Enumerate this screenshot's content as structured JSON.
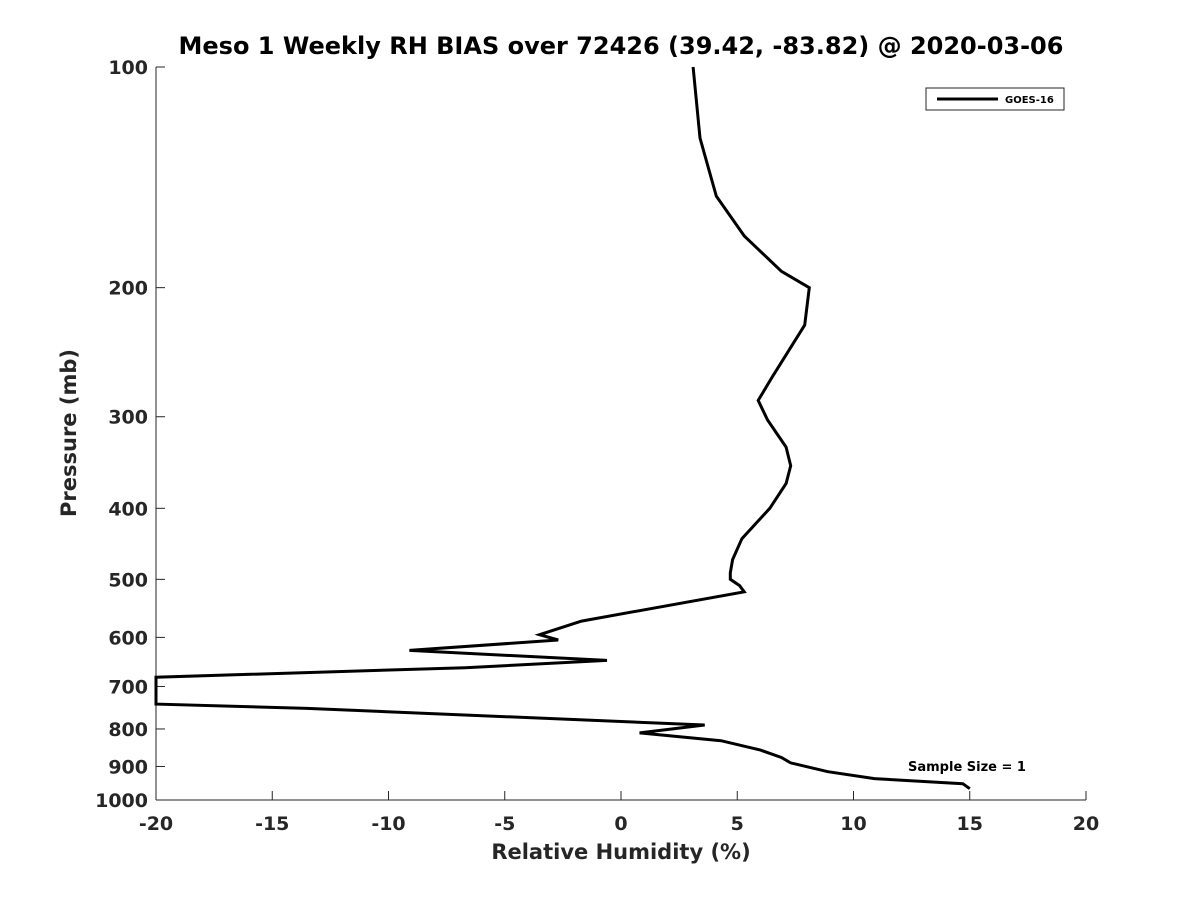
{
  "chart_data": {
    "type": "line",
    "title": "Meso 1 Weekly RH BIAS over 72426 (39.42, -83.82) @ 2020-03-06",
    "xlabel": "Relative Humidity (%)",
    "ylabel": "Pressure (mb)",
    "xlim": [
      -20,
      20
    ],
    "ylim": [
      100,
      1000
    ],
    "y_scale": "log",
    "y_reversed": true,
    "x_ticks": [
      "-20",
      "-15",
      "-10",
      "-5",
      "0",
      "5",
      "10",
      "15",
      "20"
    ],
    "y_ticks": [
      "100",
      "200",
      "300",
      "400",
      "500",
      "600",
      "700",
      "800",
      "900",
      "1000"
    ],
    "grid": false,
    "legend": {
      "position": "top-right",
      "entries": [
        "GOES-16"
      ]
    },
    "annotations": [
      "Sample Size = 1"
    ],
    "line_color": "#000000",
    "series": [
      {
        "name": "GOES-16",
        "x": [
          3.1,
          3.4,
          4.1,
          5.3,
          6.9,
          8.1,
          7.9,
          6.5,
          5.9,
          6.3,
          7.1,
          7.3,
          7.1,
          6.4,
          5.2,
          4.8,
          4.7,
          4.7,
          5.1,
          5.3,
          -1.7,
          -3.5,
          -2.7,
          -9.1,
          -0.6,
          -6.7,
          -20.0,
          -20.0,
          -13.5,
          3.6,
          0.8,
          4.3,
          6.0,
          6.9,
          7.3,
          8.9,
          10.9,
          14.7,
          15.0
        ],
        "y": [
          100,
          125,
          150,
          170,
          190,
          200,
          225,
          265,
          285,
          303,
          330,
          350,
          370,
          400,
          440,
          470,
          490,
          500,
          510,
          520,
          570,
          595,
          605,
          625,
          645,
          660,
          680,
          740,
          750,
          790,
          810,
          830,
          855,
          875,
          890,
          915,
          935,
          950,
          965
        ]
      }
    ]
  }
}
